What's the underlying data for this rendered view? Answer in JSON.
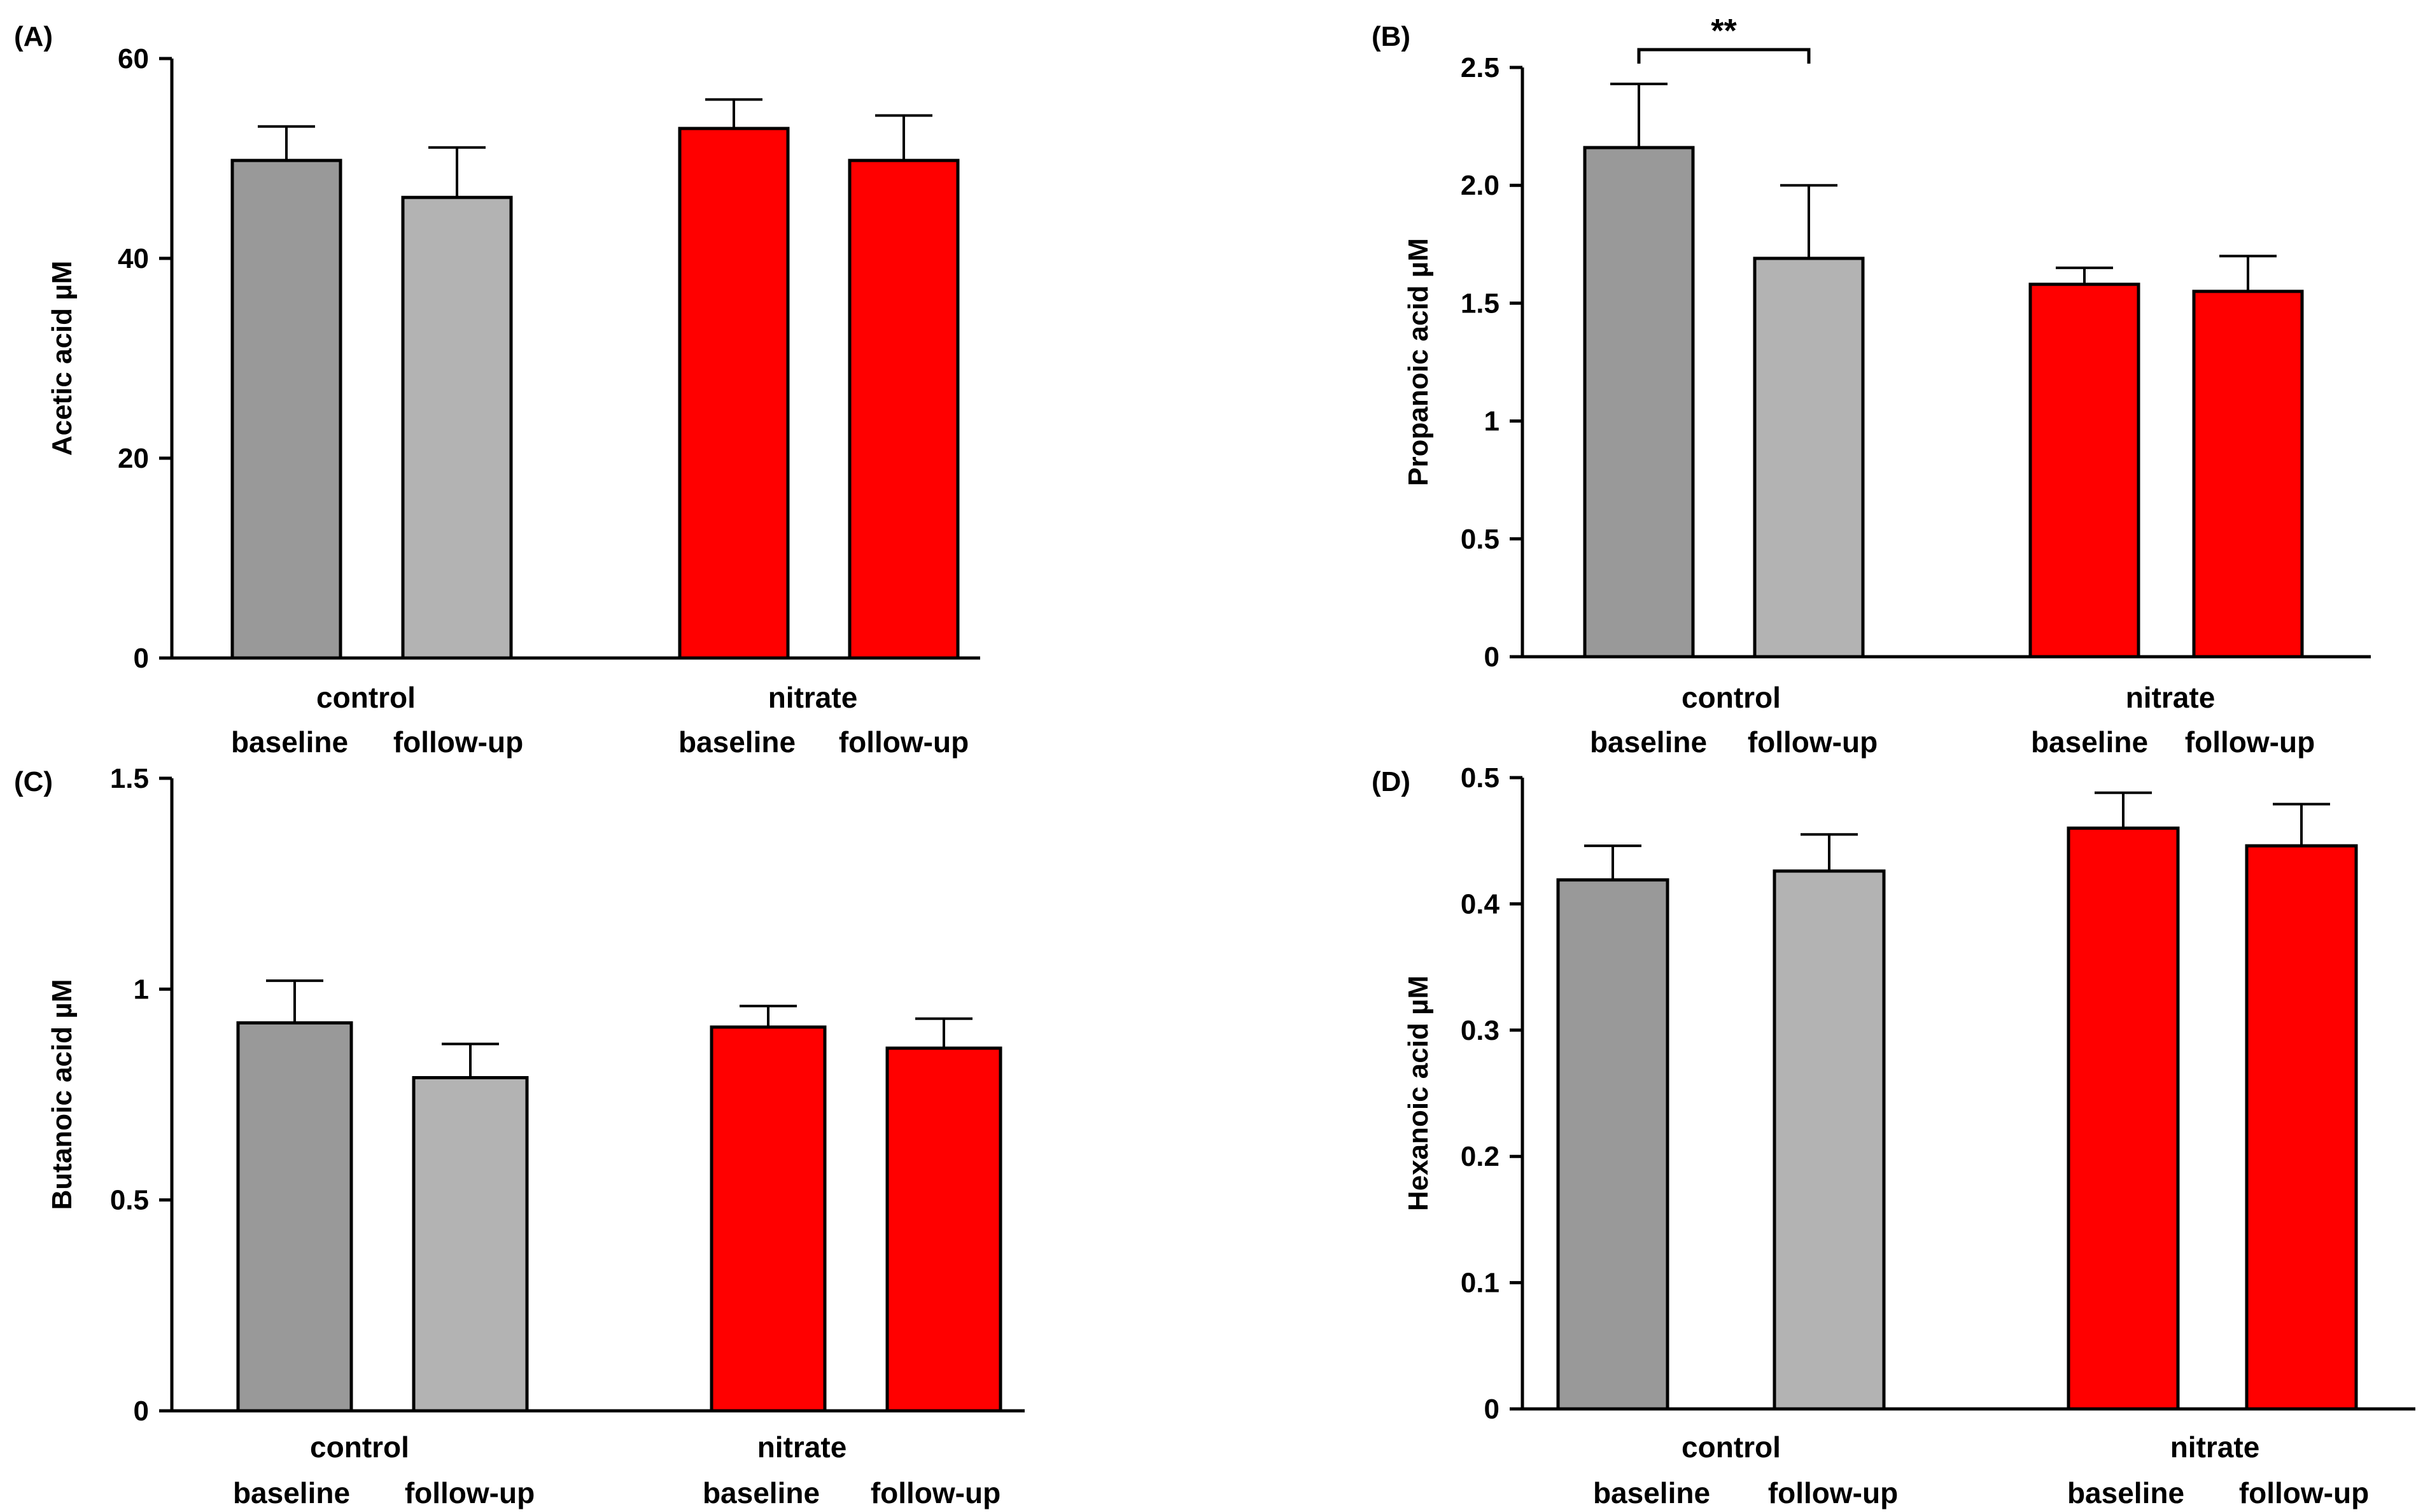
{
  "colors": {
    "control_baseline": "#999999",
    "control_followup": "#b3b3b3",
    "nitrate": "#ff0000",
    "stroke": "#000000"
  },
  "chart_data": [
    {
      "type": "bar",
      "panel": "(A)",
      "ylabel": "Acetic acid µM",
      "ylim": [
        0,
        60
      ],
      "yticks": [
        0,
        20,
        40,
        60
      ],
      "ytick_labels": [
        "0",
        "20",
        "40",
        "60"
      ],
      "groups": [
        "control",
        "nitrate"
      ],
      "conditions": [
        "baseline",
        "follow-up"
      ],
      "series": [
        {
          "name": "control baseline",
          "group": "control",
          "condition": "baseline",
          "value": 49.8,
          "error": 3.4
        },
        {
          "name": "control follow-up",
          "group": "control",
          "condition": "follow-up",
          "value": 46.1,
          "error": 5.0
        },
        {
          "name": "nitrate baseline",
          "group": "nitrate",
          "condition": "baseline",
          "value": 53.0,
          "error": 2.9
        },
        {
          "name": "nitrate follow-up",
          "group": "nitrate",
          "condition": "follow-up",
          "value": 49.8,
          "error": 4.5
        }
      ],
      "significance": []
    },
    {
      "type": "bar",
      "panel": "(B)",
      "ylabel": "Propanoic acid µM",
      "ylim": [
        0,
        2.5
      ],
      "yticks": [
        0,
        0.5,
        1,
        1.5,
        2,
        2.5
      ],
      "ytick_labels": [
        "0",
        "0.5",
        "1",
        "1.5",
        "2.0",
        "2.5"
      ],
      "groups": [
        "control",
        "nitrate"
      ],
      "conditions": [
        "baseline",
        "follow-up"
      ],
      "series": [
        {
          "name": "control baseline",
          "group": "control",
          "condition": "baseline",
          "value": 2.16,
          "error": 0.27
        },
        {
          "name": "control follow-up",
          "group": "control",
          "condition": "follow-up",
          "value": 1.69,
          "error": 0.31
        },
        {
          "name": "nitrate baseline",
          "group": "nitrate",
          "condition": "baseline",
          "value": 1.58,
          "error": 0.07
        },
        {
          "name": "nitrate follow-up",
          "group": "nitrate",
          "condition": "follow-up",
          "value": 1.55,
          "error": 0.15
        }
      ],
      "significance": [
        {
          "from": 0,
          "to": 1,
          "label": "**"
        }
      ]
    },
    {
      "type": "bar",
      "panel": "(C)",
      "ylabel": "Butanoic acid µM",
      "ylim": [
        0,
        1.5
      ],
      "yticks": [
        0,
        0.5,
        1,
        1.5
      ],
      "ytick_labels": [
        "0",
        "0.5",
        "1",
        "1.5"
      ],
      "groups": [
        "control",
        "nitrate"
      ],
      "conditions": [
        "baseline",
        "follow-up"
      ],
      "series": [
        {
          "name": "control baseline",
          "group": "control",
          "condition": "baseline",
          "value": 0.92,
          "error": 0.1
        },
        {
          "name": "control follow-up",
          "group": "control",
          "condition": "follow-up",
          "value": 0.79,
          "error": 0.08
        },
        {
          "name": "nitrate baseline",
          "group": "nitrate",
          "condition": "baseline",
          "value": 0.91,
          "error": 0.05
        },
        {
          "name": "nitrate follow-up",
          "group": "nitrate",
          "condition": "follow-up",
          "value": 0.86,
          "error": 0.07
        }
      ],
      "significance": []
    },
    {
      "type": "bar",
      "panel": "(D)",
      "ylabel": "Hexanoic acid µM",
      "ylim": [
        0,
        0.5
      ],
      "yticks": [
        0,
        0.1,
        0.2,
        0.3,
        0.4,
        0.5
      ],
      "ytick_labels": [
        "0",
        "0.1",
        "0.2",
        "0.3",
        "0.4",
        "0.5"
      ],
      "groups": [
        "control",
        "nitrate"
      ],
      "conditions": [
        "baseline",
        "follow-up"
      ],
      "series": [
        {
          "name": "control baseline",
          "group": "control",
          "condition": "baseline",
          "value": 0.419,
          "error": 0.027
        },
        {
          "name": "control follow-up",
          "group": "control",
          "condition": "follow-up",
          "value": 0.426,
          "error": 0.029
        },
        {
          "name": "nitrate baseline",
          "group": "nitrate",
          "condition": "baseline",
          "value": 0.46,
          "error": 0.028
        },
        {
          "name": "nitrate follow-up",
          "group": "nitrate",
          "condition": "follow-up",
          "value": 0.446,
          "error": 0.033
        }
      ],
      "significance": []
    }
  ]
}
